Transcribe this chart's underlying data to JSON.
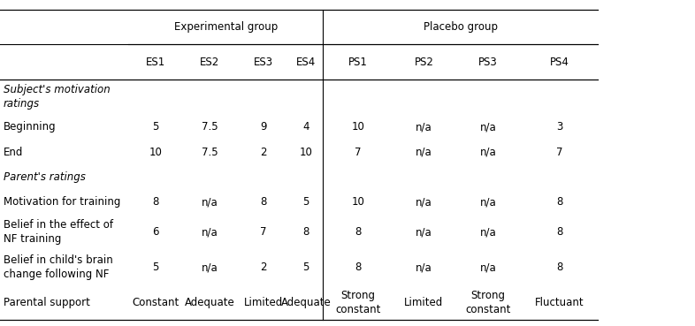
{
  "col_headers_level1": [
    "",
    "Experimental group",
    "Placebo group"
  ],
  "col_headers_level2": [
    "",
    "ES1",
    "ES2",
    "ES3",
    "ES4",
    "PS1",
    "PS2",
    "PS3",
    "PS4"
  ],
  "rows": [
    {
      "label_line1": "Subject's motivation",
      "label_line2": "ratings",
      "italic": true,
      "values": [
        "",
        "",
        "",
        "",
        "",
        "",
        "",
        ""
      ]
    },
    {
      "label_line1": "Beginning",
      "label_line2": "",
      "italic": false,
      "values": [
        "5",
        "7.5",
        "9",
        "4",
        "10",
        "n/a",
        "n/a",
        "3"
      ]
    },
    {
      "label_line1": "End",
      "label_line2": "",
      "italic": false,
      "values": [
        "10",
        "7.5",
        "2",
        "10",
        "7",
        "n/a",
        "n/a",
        "7"
      ]
    },
    {
      "label_line1": "Parent's ratings",
      "label_line2": "",
      "italic": true,
      "values": [
        "",
        "",
        "",
        "",
        "",
        "",
        "",
        ""
      ]
    },
    {
      "label_line1": "Motivation for training",
      "label_line2": "",
      "italic": false,
      "values": [
        "8",
        "n/a",
        "8",
        "5",
        "10",
        "n/a",
        "n/a",
        "8"
      ]
    },
    {
      "label_line1": "Belief in the effect of",
      "label_line2": "NF training",
      "italic": false,
      "values": [
        "6",
        "n/a",
        "7",
        "8",
        "8",
        "n/a",
        "n/a",
        "8"
      ]
    },
    {
      "label_line1": "Belief in child's brain",
      "label_line2": "change following NF",
      "italic": false,
      "values": [
        "5",
        "n/a",
        "2",
        "5",
        "8",
        "n/a",
        "n/a",
        "8"
      ]
    },
    {
      "label_line1": "Parental support",
      "label_line2": "",
      "italic": false,
      "values": [
        "Constant",
        "Adequate",
        "Limited",
        "Adequate",
        "Strong\nconstant",
        "Limited",
        "Strong\nconstant",
        "Fluctuant"
      ]
    }
  ],
  "background_color": "#ffffff",
  "text_color": "#000000",
  "line_color": "#000000",
  "font_size": 8.5
}
